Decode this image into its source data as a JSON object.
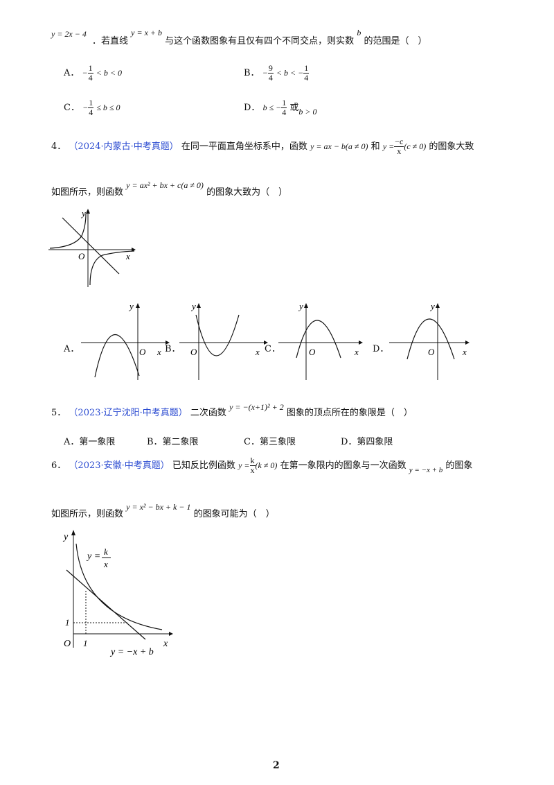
{
  "q3": {
    "line1_expr": "y = 2x − 4",
    "line1_text_a": "．若直线",
    "line1_expr2": "y = x + b",
    "line1_text_b": "与这个函数图象有且仅有四个不同交点，则实数",
    "line1_var": "b",
    "line1_text_c": "的范围是（　）",
    "options": {
      "A_label": "A．",
      "A_expr_pre": "−",
      "A_num": "1",
      "A_den": "4",
      "A_expr_post": "< b < 0",
      "B_label": "B．",
      "B_expr_pre": "−",
      "B_num": "9",
      "B_den": "4",
      "B_mid": "< b < −",
      "B_num2": "1",
      "B_den2": "4",
      "C_label": "C．",
      "C_expr_pre": "−",
      "C_num": "1",
      "C_den": "4",
      "C_expr_post": "≤ b ≤ 0",
      "D_label": "D．",
      "D_expr_pre": "b ≤ −",
      "D_num": "1",
      "D_den": "4",
      "D_or": "或",
      "D_expr_post": "b > 0"
    }
  },
  "q4": {
    "number": "4．",
    "source": "（2024·内蒙古·中考真题）",
    "text_a": "在同一平面直角坐标系中，函数",
    "expr1": "y = ax − b(a ≠ 0)",
    "text_b": "和",
    "expr2_pre": "y =",
    "expr2_num": "−c",
    "expr2_den": "x",
    "expr2_post": "(c ≠ 0)",
    "text_c": "的图象大致",
    "line2_a": "如图所示，则函数",
    "line2_expr": "y = ax² + bx + c(a ≠ 0)",
    "line2_b": "的图象大致为（　）",
    "graph_labels": {
      "y": "y",
      "x": "x",
      "o": "O"
    },
    "options": [
      "A．",
      "B．",
      "C．",
      "D．"
    ]
  },
  "q5": {
    "number": "5．",
    "source": "（2023·辽宁沈阳·中考真题）",
    "text_a": "二次函数",
    "expr": "y = −(x+1)² + 2",
    "text_b": "图象的顶点所在的象限是（　）",
    "options": [
      "A．第一象限",
      "B．第二象限",
      "C．第三象限",
      "D．第四象限"
    ]
  },
  "q6": {
    "number": "6．",
    "source": "（2023·安徽·中考真题）",
    "text_a": "已知反比例函数",
    "expr1_pre": "y =",
    "expr1_num": "k",
    "expr1_den": "x",
    "expr1_post": "(k ≠ 0)",
    "text_b": "在第一象限内的图象与一次函数",
    "expr2": "y = −x + b",
    "text_c": "的图象",
    "line2_a": "如图所示，则函数",
    "line2_expr": "y = x² − bx + k − 1",
    "line2_b": "的图象可能为（　）",
    "graph": {
      "y": "y",
      "x": "x",
      "o": "O",
      "one_x": "1",
      "one_y": "1",
      "curve_pre": "y =",
      "curve_num": "k",
      "curve_den": "x",
      "line_label": "y = −x + b"
    }
  },
  "page_number": "2"
}
